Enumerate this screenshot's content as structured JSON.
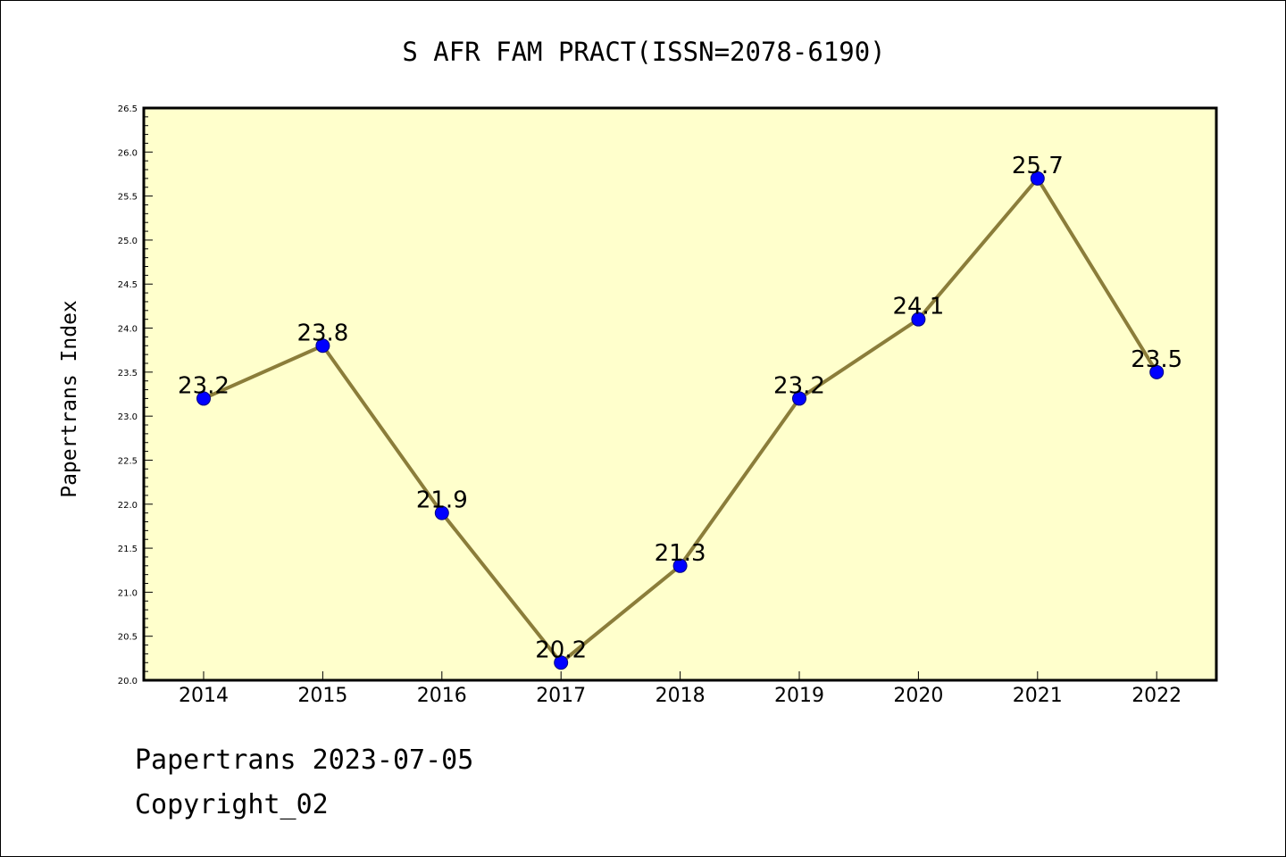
{
  "chart_data": {
    "type": "line",
    "title": "S AFR FAM PRACT(ISSN=2078-6190)",
    "xlabel": "",
    "ylabel": "Papertrans Index",
    "categories": [
      "2014",
      "2015",
      "2016",
      "2017",
      "2018",
      "2019",
      "2020",
      "2021",
      "2022"
    ],
    "series": [
      {
        "values": [
          23.2,
          23.8,
          21.9,
          20.2,
          21.3,
          23.2,
          24.1,
          25.7,
          23.5
        ],
        "data_labels": [
          "23.2",
          "23.8",
          "21.9",
          "20.2",
          "21.3",
          "23.2",
          "24.1",
          "25.7",
          "23.5"
        ]
      }
    ],
    "ylim": [
      20.0,
      26.5
    ],
    "yticks": [
      "20.0",
      "20.5",
      "21.0",
      "21.5",
      "22.0",
      "22.5",
      "23.0",
      "23.5",
      "24.0",
      "24.5",
      "25.0",
      "25.5",
      "26.0",
      "26.5"
    ],
    "grid": false,
    "legend": "none",
    "colors": {
      "line": "#8b7d3a",
      "marker": "#0000ff",
      "plot_background": "#ffffcc",
      "page_background": "#ffffff"
    }
  },
  "footer": {
    "line1": "Papertrans 2023-07-05",
    "line2": "Copyright_02"
  }
}
